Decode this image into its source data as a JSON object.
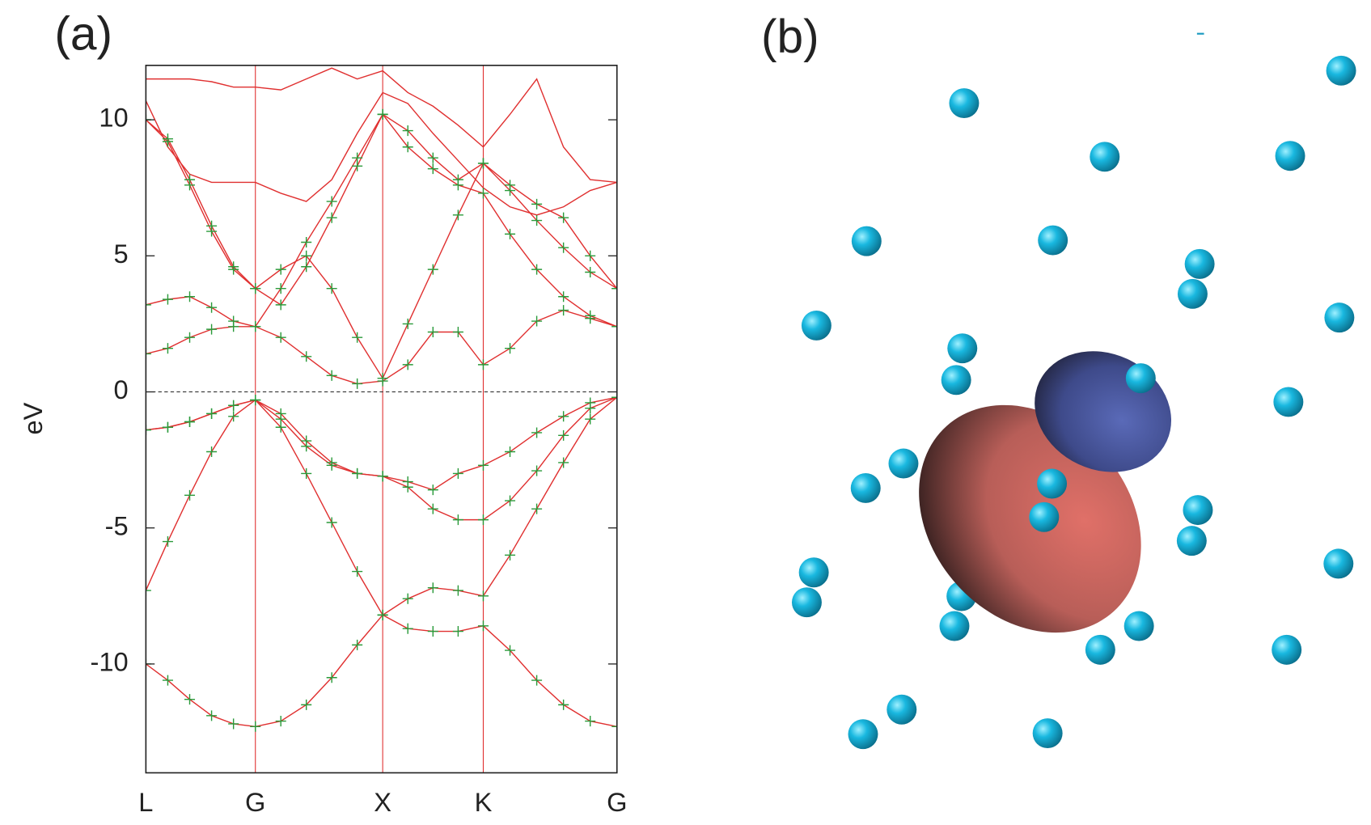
{
  "chart_data": [
    {
      "type": "line",
      "title": "(a)",
      "ylabel": "eV",
      "x": [
        0,
        0.172,
        0.344,
        0.516,
        0.688,
        0.86,
        1.06,
        1.26,
        1.46,
        1.66,
        1.86,
        2.0575,
        2.255,
        2.4525,
        2.65,
        2.86,
        3.07,
        3.28,
        3.49,
        3.7
      ],
      "xlim": [
        0,
        3.7
      ],
      "xticks": [
        {
          "value": 0,
          "label": "L"
        },
        {
          "value": 0.86,
          "label": "G"
        },
        {
          "value": 1.86,
          "label": "X"
        },
        {
          "value": 2.65,
          "label": "K"
        },
        {
          "value": 3.7,
          "label": "G"
        }
      ],
      "ylim": [
        -14,
        12
      ],
      "yticks": [
        -10,
        -5,
        0,
        5,
        10
      ],
      "hline": 0,
      "xgrid": true,
      "xgrid_color": "#e03030",
      "series": [
        {
          "color": "#e03030",
          "marker_color": "#2a9a3a",
          "values": [
            -10,
            -10.6,
            -11.3,
            -11.9,
            -12.2,
            -12.3,
            -12.1,
            -11.5,
            -10.5,
            -9.3,
            -8.2,
            -8.7,
            -8.8,
            -8.8,
            -8.6,
            -9.5,
            -10.6,
            -11.5,
            -12.1,
            -12.3
          ]
        },
        {
          "color": "#e03030",
          "marker_color": "#2a9a3a",
          "values": [
            -7.3,
            -5.5,
            -3.8,
            -2.2,
            -0.9,
            -0.3,
            -1.3,
            -3.0,
            -4.8,
            -6.6,
            -8.2,
            -7.6,
            -7.2,
            -7.3,
            -7.5,
            -6.0,
            -4.3,
            -2.6,
            -1.0,
            -0.2
          ]
        },
        {
          "color": "#e03030",
          "marker_color": "#2a9a3a",
          "values": [
            -1.4,
            -1.3,
            -1.1,
            -0.8,
            -0.5,
            -0.3,
            -1.0,
            -2.0,
            -2.7,
            -3.0,
            -3.1,
            -3.5,
            -4.3,
            -4.7,
            -4.7,
            -4.0,
            -2.9,
            -1.6,
            -0.6,
            -0.2
          ]
        },
        {
          "color": "#e03030",
          "marker_color": "#2a9a3a",
          "values": [
            -1.4,
            -1.3,
            -1.1,
            -0.8,
            -0.5,
            -0.3,
            -0.8,
            -1.8,
            -2.6,
            -3.0,
            -3.1,
            -3.3,
            -3.6,
            -3.0,
            -2.7,
            -2.2,
            -1.5,
            -0.9,
            -0.4,
            -0.2
          ]
        },
        {
          "color": "#e03030",
          "marker_color": "#2a9a3a",
          "values": [
            1.4,
            1.6,
            2.0,
            2.3,
            2.4,
            2.4,
            2.0,
            1.3,
            0.6,
            0.3,
            0.4,
            1.0,
            2.2,
            2.2,
            1.0,
            1.6,
            2.6,
            3.0,
            2.7,
            2.4
          ]
        },
        {
          "color": "#e03030",
          "marker_color": "#2a9a3a",
          "values": [
            3.2,
            3.4,
            3.5,
            3.1,
            2.6,
            2.4,
            3.8,
            5.5,
            7.0,
            8.6,
            10.2,
            9.0,
            8.2,
            7.6,
            7.3,
            5.8,
            4.5,
            3.5,
            2.8,
            2.4
          ]
        },
        {
          "color": "#e03030",
          "marker_color": "#2a9a3a",
          "values": [
            10,
            9.2,
            7.6,
            5.9,
            4.5,
            3.8,
            4.5,
            5.0,
            3.8,
            2.0,
            0.5,
            2.5,
            4.5,
            6.5,
            8.4,
            7.4,
            6.3,
            5.3,
            4.4,
            3.8
          ]
        },
        {
          "color": "#e03030",
          "marker_color": "#2a9a3a",
          "values": [
            10,
            9.3,
            7.8,
            6.1,
            4.6,
            3.8,
            3.2,
            4.6,
            6.4,
            8.3,
            10.2,
            9.6,
            8.6,
            7.8,
            8.4,
            7.6,
            6.9,
            6.4,
            5.0,
            3.8
          ]
        },
        {
          "color": "#e03030",
          "values": [
            10.7,
            9.0,
            8.0,
            7.7,
            7.7,
            7.7,
            7.3,
            7.0,
            7.8,
            9.5,
            11.0,
            10.6,
            9.5,
            8.5,
            7.5,
            6.8,
            6.5,
            6.8,
            7.4,
            7.7
          ]
        },
        {
          "color": "#e03030",
          "values": [
            11.5,
            11.5,
            11.5,
            11.4,
            11.2,
            11.2,
            11.1,
            11.5,
            11.9,
            11.5,
            11.8,
            11.0,
            10.5,
            9.8,
            9.0,
            10.2,
            11.5,
            9.0,
            7.8,
            7.7
          ]
        }
      ]
    },
    {
      "type": "image",
      "title": "(b)"
    }
  ]
}
